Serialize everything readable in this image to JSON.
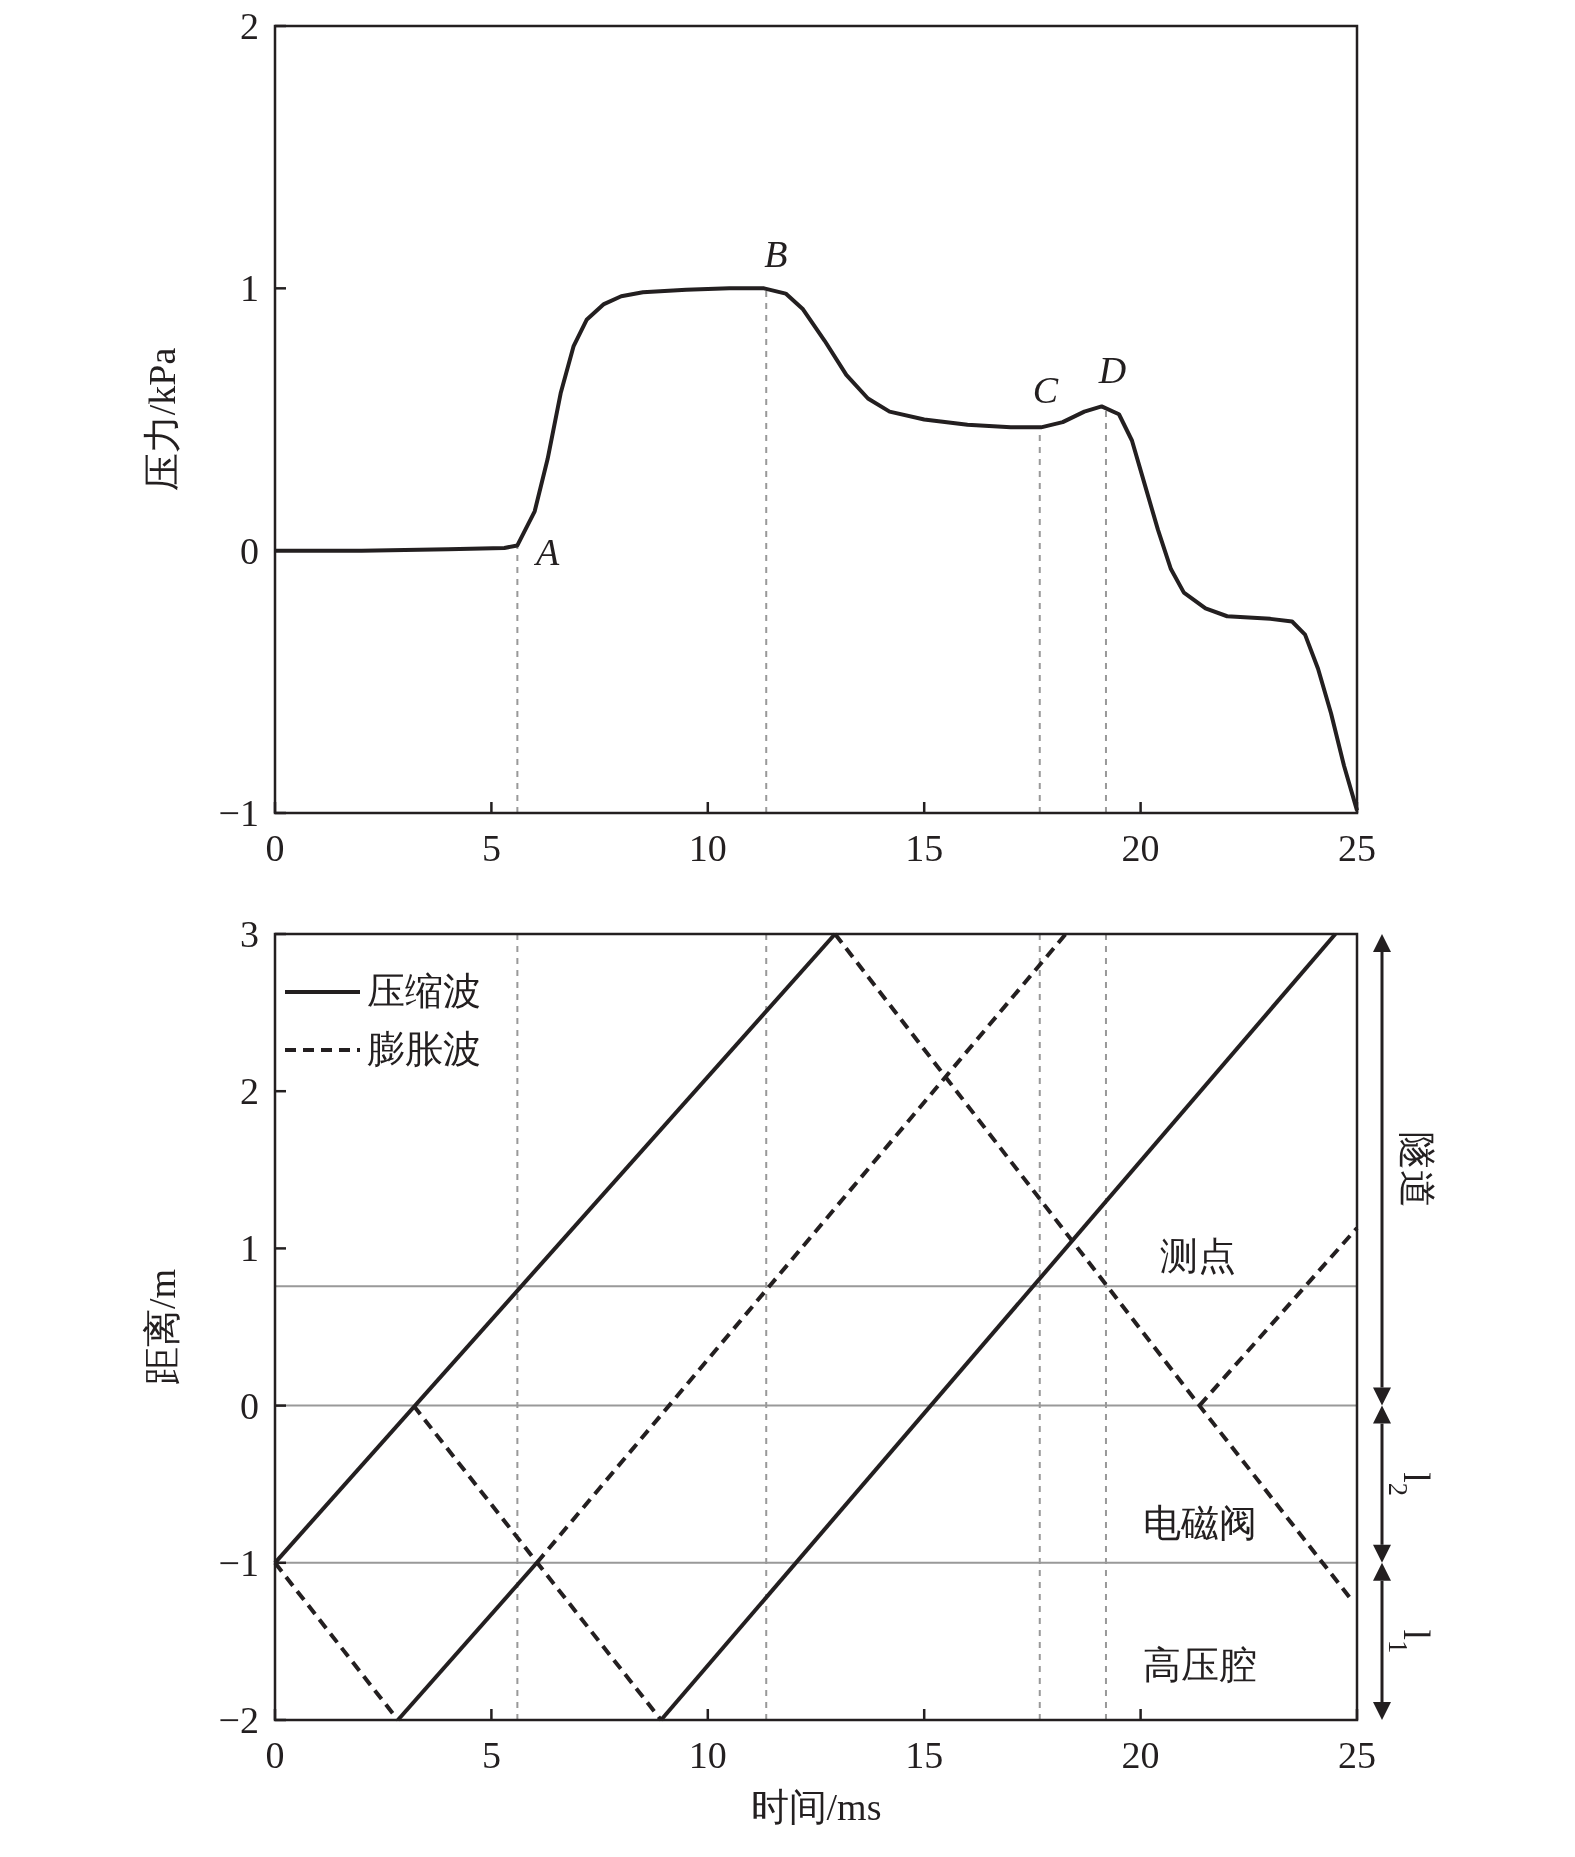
{
  "chart_data": [
    {
      "type": "line",
      "ylabel": "压力/kPa",
      "x": [
        0,
        2,
        4,
        5.3,
        5.6,
        6.0,
        6.3,
        6.6,
        6.9,
        7.2,
        7.6,
        8.0,
        8.5,
        9.5,
        10.5,
        11.3,
        11.8,
        12.2,
        12.7,
        13.2,
        13.7,
        14.2,
        15,
        16,
        17,
        17.7,
        18.2,
        18.7,
        19.1,
        19.5,
        19.8,
        20.1,
        20.4,
        20.7,
        21.0,
        21.5,
        22,
        23,
        23.5,
        23.8,
        24.1,
        24.4,
        24.7,
        25
      ],
      "series": [
        {
          "color": "#231f20",
          "values": [
            0,
            0,
            0.005,
            0.01,
            0.02,
            0.15,
            0.35,
            0.6,
            0.78,
            0.88,
            0.94,
            0.97,
            0.985,
            0.995,
            1.0,
            1.0,
            0.98,
            0.92,
            0.8,
            0.67,
            0.58,
            0.53,
            0.5,
            0.48,
            0.47,
            0.47,
            0.49,
            0.53,
            0.55,
            0.52,
            0.42,
            0.25,
            0.08,
            -0.07,
            -0.16,
            -0.22,
            -0.25,
            -0.26,
            -0.27,
            -0.32,
            -0.45,
            -0.62,
            -0.82,
            -0.99
          ]
        }
      ],
      "xlim": [
        0,
        25
      ],
      "xticks": [
        0,
        5,
        10,
        15,
        20,
        25
      ],
      "ylim": [
        -1,
        2
      ],
      "yticks": [
        -1,
        0,
        1,
        2
      ],
      "ref_lines": [
        {
          "axis": "x",
          "value": 5.6,
          "color": "#999999",
          "line_style": "dashed"
        },
        {
          "axis": "x",
          "value": 11.35,
          "color": "#999999",
          "line_style": "dashed"
        },
        {
          "axis": "x",
          "value": 17.67,
          "color": "#999999",
          "line_style": "dashed"
        },
        {
          "axis": "x",
          "value": 19.2,
          "color": "#999999",
          "line_style": "dashed"
        }
      ],
      "annotations": [
        "A",
        "B",
        "C",
        "D"
      ]
    },
    {
      "type": "line",
      "xlabel": "时间/ms",
      "ylabel": "距离/m",
      "legend": "top left",
      "series": [
        {
          "name": "压缩波",
          "color": "#231f20",
          "line_style": "solid",
          "x": [
            0,
            12.94
          ],
          "values": [
            -1,
            3
          ]
        },
        {
          "color": "#231f20",
          "line_style": "solid",
          "x": [
            2.84,
            6.05
          ],
          "values": [
            -2,
            -1
          ]
        },
        {
          "color": "#231f20",
          "line_style": "solid",
          "x": [
            8.92,
            24.5
          ],
          "values": [
            -2,
            3
          ]
        },
        {
          "name": "膨胀波",
          "color": "#231f20",
          "line_style": "dashed",
          "x": [
            0,
            2.84
          ],
          "values": [
            -1,
            -2
          ]
        },
        {
          "color": "#231f20",
          "line_style": "dashed",
          "x": [
            3.2,
            8.92
          ],
          "values": [
            0,
            -2
          ]
        },
        {
          "color": "#231f20",
          "line_style": "dashed",
          "x": [
            6.05,
            18.27
          ],
          "values": [
            -1,
            3
          ]
        },
        {
          "color": "#231f20",
          "line_style": "dashed",
          "x": [
            12.94,
            21.36,
            24.83
          ],
          "values": [
            3,
            0,
            -1.22
          ]
        },
        {
          "color": "#231f20",
          "line_style": "dashed",
          "x": [
            21.36,
            25
          ],
          "values": [
            0,
            1.13
          ]
        }
      ],
      "xlim": [
        0,
        25
      ],
      "xticks": [
        0,
        5,
        10,
        15,
        20,
        25
      ],
      "ylim": [
        -2,
        3
      ],
      "yticks": [
        -2,
        -1,
        0,
        1,
        2,
        3
      ],
      "ref_lines": [
        {
          "axis": "y",
          "value": 0.76,
          "color": "#999999",
          "line_style": "solid"
        },
        {
          "axis": "y",
          "value": 0,
          "color": "#999999",
          "line_style": "solid"
        },
        {
          "axis": "y",
          "value": -1,
          "color": "#999999",
          "line_style": "solid"
        },
        {
          "axis": "x",
          "value": 5.6,
          "color": "#999999",
          "line_style": "dashed"
        },
        {
          "axis": "x",
          "value": 11.35,
          "color": "#999999",
          "line_style": "dashed"
        },
        {
          "axis": "x",
          "value": 17.67,
          "color": "#999999",
          "line_style": "dashed"
        },
        {
          "axis": "x",
          "value": 19.2,
          "color": "#999999",
          "line_style": "dashed"
        }
      ],
      "annotations": [
        "测点",
        "电磁阀",
        "高压腔",
        "隧道",
        "l$_{2}$",
        "l$_{1}$"
      ]
    }
  ]
}
